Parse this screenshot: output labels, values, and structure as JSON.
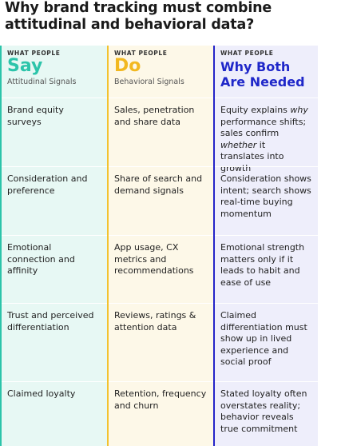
{
  "title": "Why brand tracking must combine attitudinal and behavioral data?",
  "columns": [
    {
      "kicker": "WHAT PEOPLE",
      "heading": "Say",
      "sub": "Attitudinal Signals",
      "color": "#2cc4aa"
    },
    {
      "kicker": "WHAT PEOPLE",
      "heading": "Do",
      "sub": "Behavioral Signals",
      "color": "#f2b820"
    },
    {
      "kicker": "WHAT PEOPLE",
      "heading": "Why Both Are Needed",
      "color": "#1f27c9"
    }
  ],
  "rows": [
    {
      "say": "Brand equity surveys",
      "do": "Sales, penetration and share data",
      "why_a": "Equity explains ",
      "why_em1": "why",
      "why_b": " performance shifts; sales confirm ",
      "why_em2": "whether",
      "why_c": " it translates into growth"
    },
    {
      "say": "Consideration and preference",
      "do": "Share of search and demand signals",
      "why": "Consideration shows intent; search shows real-time buying momentum"
    },
    {
      "say": "Emotional connection and affinity",
      "do": "App usage, CX metrics and recommendations",
      "why": "Emotional strength matters only if it leads to habit and ease of use"
    },
    {
      "say": "Trust and perceived differentiation",
      "do": "Reviews, ratings & attention data",
      "why": "Claimed differentiation must show up in lived experience and social proof"
    },
    {
      "say": "Claimed loyalty",
      "do": "Retention, frequency and churn",
      "why": "Stated loyalty often overstates reality; behavior reveals true commitment"
    }
  ]
}
